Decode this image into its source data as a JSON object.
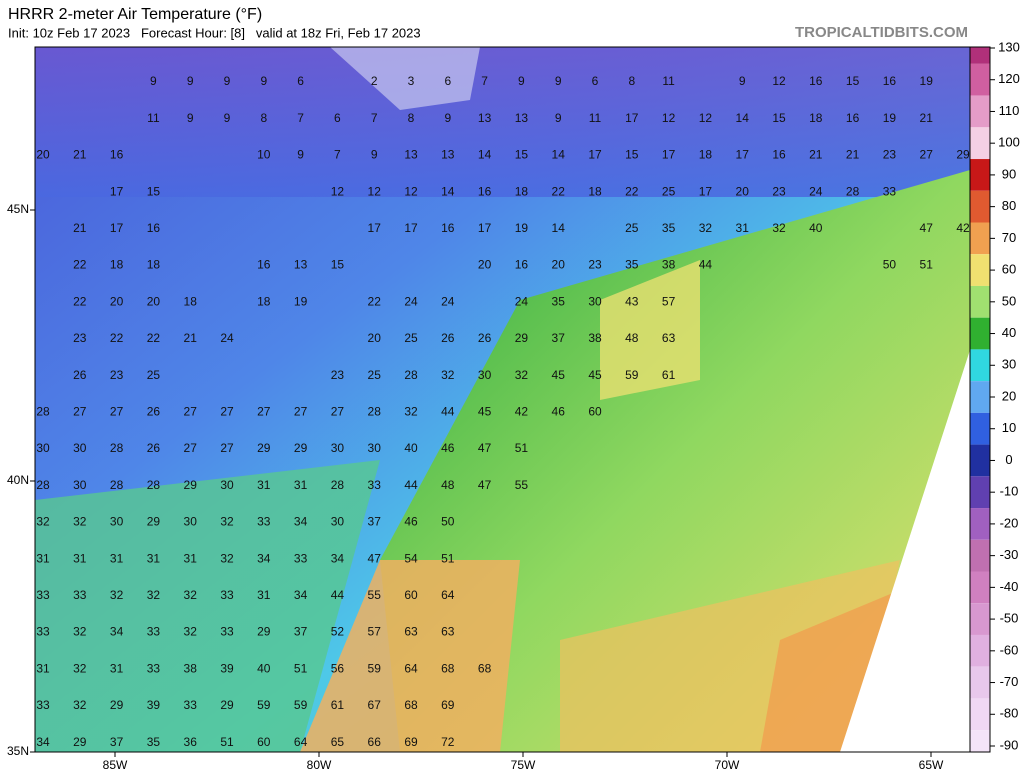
{
  "header": {
    "title": "HRRR 2-meter Air Temperature (°F)",
    "subtitle": "Init: 10z Feb 17 2023   Forecast Hour: [8]   valid at 18z Fri, Feb 17 2023",
    "source": "TROPICALTIDBITS.COM"
  },
  "map": {
    "lon_labels": [
      "85W",
      "80W",
      "75W",
      "70W",
      "65W"
    ],
    "lat_labels": [
      "45N",
      "40N",
      "35N"
    ],
    "grid": [
      [
        null,
        null,
        null,
        9,
        9,
        9,
        9,
        6,
        null,
        2,
        3,
        6,
        7,
        9,
        9,
        6,
        8,
        11,
        null,
        9,
        12,
        16,
        15,
        16,
        19
      ],
      [
        null,
        null,
        null,
        11,
        9,
        9,
        8,
        7,
        6,
        7,
        8,
        9,
        13,
        13,
        9,
        11,
        17,
        12,
        12,
        14,
        15,
        18,
        16,
        19,
        21
      ],
      [
        20,
        21,
        16,
        null,
        null,
        null,
        10,
        9,
        7,
        9,
        13,
        13,
        14,
        15,
        14,
        17,
        15,
        17,
        18,
        17,
        16,
        21,
        21,
        23,
        27,
        29
      ],
      [
        null,
        null,
        17,
        15,
        null,
        null,
        null,
        null,
        12,
        12,
        12,
        14,
        16,
        18,
        22,
        18,
        22,
        25,
        17,
        20,
        23,
        24,
        28,
        33
      ],
      [
        null,
        21,
        17,
        16,
        null,
        null,
        null,
        null,
        null,
        17,
        17,
        16,
        17,
        19,
        14,
        null,
        25,
        35,
        32,
        31,
        32,
        40,
        null,
        null,
        47,
        42
      ],
      [
        null,
        22,
        18,
        18,
        null,
        null,
        16,
        13,
        15,
        null,
        null,
        null,
        20,
        16,
        20,
        23,
        35,
        38,
        44,
        null,
        null,
        null,
        null,
        50,
        51
      ],
      [
        null,
        22,
        20,
        20,
        18,
        null,
        18,
        19,
        null,
        22,
        24,
        24,
        null,
        24,
        35,
        30,
        43,
        57
      ],
      [
        null,
        23,
        22,
        22,
        21,
        24,
        null,
        null,
        null,
        20,
        25,
        26,
        26,
        29,
        37,
        38,
        48,
        63
      ],
      [
        null,
        26,
        23,
        25,
        null,
        null,
        null,
        null,
        23,
        25,
        28,
        32,
        30,
        32,
        45,
        45,
        59,
        61
      ],
      [
        28,
        27,
        27,
        26,
        27,
        27,
        27,
        27,
        27,
        28,
        32,
        44,
        45,
        42,
        46,
        60
      ],
      [
        30,
        30,
        28,
        26,
        27,
        27,
        29,
        29,
        30,
        30,
        40,
        46,
        47,
        51
      ],
      [
        28,
        30,
        28,
        28,
        29,
        30,
        31,
        31,
        28,
        33,
        44,
        48,
        47,
        55
      ],
      [
        32,
        32,
        30,
        29,
        30,
        32,
        33,
        34,
        30,
        37,
        46,
        50
      ],
      [
        31,
        31,
        31,
        31,
        31,
        32,
        34,
        33,
        34,
        47,
        54,
        51
      ],
      [
        33,
        33,
        32,
        32,
        32,
        33,
        31,
        34,
        44,
        55,
        60,
        64
      ],
      [
        33,
        32,
        34,
        33,
        32,
        33,
        29,
        37,
        52,
        57,
        63,
        63
      ],
      [
        31,
        32,
        31,
        33,
        38,
        39,
        40,
        51,
        56,
        59,
        64,
        68,
        68
      ],
      [
        33,
        32,
        29,
        39,
        33,
        29,
        59,
        59,
        61,
        67,
        68,
        69
      ],
      [
        34,
        29,
        37,
        35,
        36,
        51,
        60,
        64,
        65,
        66,
        69,
        72
      ]
    ]
  },
  "colorbar": {
    "ticks": [
      130,
      120,
      110,
      100,
      90,
      80,
      70,
      60,
      50,
      40,
      30,
      20,
      10,
      0,
      -10,
      -20,
      -30,
      -40,
      -50,
      -60,
      -70,
      -80,
      -90
    ],
    "colors": [
      "#b0307a",
      "#d05fa0",
      "#e49cc8",
      "#f4d0e4",
      "#c81818",
      "#e05a30",
      "#f0a050",
      "#f0e070",
      "#a0e070",
      "#30b030",
      "#30d8e0",
      "#60a8f0",
      "#3060e0",
      "#2030a0",
      "#6040b0",
      "#a060c0",
      "#c070b0",
      "#d080c0",
      "#d898d0",
      "#e0b0e0",
      "#e8c8ec",
      "#f0d8f4",
      "#f4e4f8"
    ]
  }
}
